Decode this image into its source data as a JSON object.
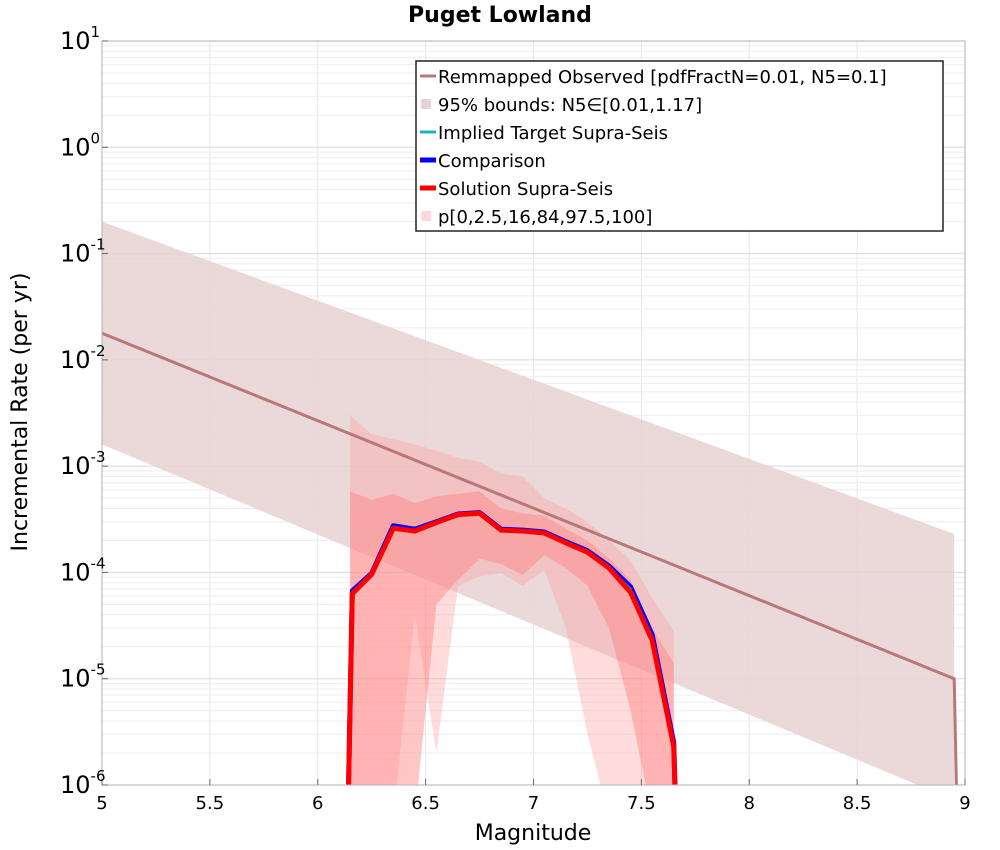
{
  "chart_data": {
    "type": "line",
    "title": "Puget Lowland",
    "xlabel": "Magnitude",
    "ylabel": "Incremental Rate (per yr)",
    "xlim": [
      5,
      9
    ],
    "ylim": [
      1e-06,
      10
    ],
    "yscale": "log",
    "grid": true,
    "legend_position": "top-right",
    "xticks": [
      "5",
      "5.5",
      "6",
      "6.5",
      "7",
      "7.5",
      "8",
      "8.5",
      "9"
    ],
    "yticks": [
      {
        "base": "10",
        "exp": "1"
      },
      {
        "base": "10",
        "exp": "0"
      },
      {
        "base": "10",
        "exp": "-1"
      },
      {
        "base": "10",
        "exp": "-2"
      },
      {
        "base": "10",
        "exp": "-3"
      },
      {
        "base": "10",
        "exp": "-4"
      },
      {
        "base": "10",
        "exp": "-5"
      },
      {
        "base": "10",
        "exp": "-6"
      }
    ],
    "legend": [
      {
        "label": "Remmapped Observed [pdfFractN=0.01, N5=0.1]",
        "color": "#b87878",
        "kind": "line"
      },
      {
        "label": "95% bounds: N5∈[0.01,1.17]",
        "color": "#e8d2d4",
        "kind": "patch"
      },
      {
        "label": "Implied Target Supra-Seis",
        "color": "#1fb0c8",
        "kind": "line"
      },
      {
        "label": "Comparison",
        "color": "#0000ff",
        "kind": "line"
      },
      {
        "label": "Solution Supra-Seis",
        "color": "#ff0000",
        "kind": "line"
      },
      {
        "label": "p[0,2.5,16,84,97.5,100]",
        "color": "#ffd6da",
        "kind": "patch"
      }
    ],
    "observed": {
      "x": [
        5.0,
        8.95,
        8.96
      ],
      "y": [
        0.0178,
        1e-05,
        1e-06
      ]
    },
    "observed_bounds": {
      "x": [
        5.0,
        8.95
      ],
      "upper": [
        0.2,
        0.00023
      ],
      "lower": [
        0.0016,
        7.2e-07
      ]
    },
    "solution": {
      "x": [
        6.14,
        6.16,
        6.25,
        6.35,
        6.45,
        6.55,
        6.65,
        6.75,
        6.85,
        6.95,
        7.05,
        7.15,
        7.25,
        7.35,
        7.45,
        7.55,
        7.65,
        7.66
      ],
      "y": [
        5e-07,
        6.3e-05,
        9.6e-05,
        0.00026,
        0.000245,
        0.000295,
        0.00035,
        0.00036,
        0.00025,
        0.000245,
        0.000235,
        0.00019,
        0.000155,
        0.00011,
        6.5e-05,
        2.3e-05,
        2.3e-06,
        5e-07
      ]
    },
    "comparison": {
      "x": [
        6.14,
        6.16,
        6.25,
        6.35,
        6.45,
        6.55,
        6.65,
        6.75,
        6.85,
        6.95,
        7.05,
        7.15,
        7.25,
        7.35,
        7.45,
        7.55,
        7.65,
        7.66
      ],
      "y": [
        5e-07,
        6.7e-05,
        9.8e-05,
        0.000275,
        0.000255,
        0.0003,
        0.000355,
        0.000365,
        0.000255,
        0.00025,
        0.00024,
        0.000195,
        0.00016,
        0.000115,
        7.3e-05,
        2.6e-05,
        2.5e-06,
        5e-07
      ]
    },
    "implied_target": {
      "x": [
        6.14,
        6.16,
        6.25,
        6.35,
        6.45,
        6.55,
        6.65,
        6.75,
        6.85,
        6.95,
        7.05,
        7.15,
        7.25,
        7.35,
        7.45,
        7.55,
        7.65,
        7.66
      ],
      "y": [
        5e-07,
        6.6e-05,
        9.7e-05,
        0.00027,
        0.00025,
        0.000298,
        0.000352,
        0.000362,
        0.000252,
        0.000248,
        0.000238,
        0.000193,
        0.000158,
        0.000112,
        7e-05,
        2.5e-05,
        2.4e-06,
        5e-07
      ]
    },
    "solution_percentiles": {
      "outer": {
        "x": [
          6.15,
          6.25,
          6.35,
          6.45,
          6.55,
          6.65,
          6.75,
          6.85,
          6.95,
          7.05,
          7.15,
          7.25,
          7.35,
          7.45,
          7.55,
          7.65
        ],
        "upper": [
          0.003,
          0.002,
          0.0018,
          0.0016,
          0.0014,
          0.0012,
          0.0011,
          0.00085,
          0.0008,
          0.0005,
          0.0004,
          0.0003,
          0.0002,
          0.00013,
          5.8e-05,
          2.8e-05
        ],
        "lower": [
          5e-07,
          5e-07,
          5e-07,
          4e-05,
          2e-06,
          7.5e-05,
          9.2e-05,
          9.8e-05,
          7.5e-05,
          0.000105,
          3e-05,
          3e-06,
          5e-07,
          5e-07,
          5e-07,
          5e-07
        ]
      },
      "inner": {
        "x": [
          6.15,
          6.25,
          6.35,
          6.45,
          6.55,
          6.65,
          6.75,
          6.85,
          6.95,
          7.05,
          7.15,
          7.25,
          7.35,
          7.45,
          7.55,
          7.65
        ],
        "upper": [
          0.00058,
          0.00048,
          0.00055,
          0.00045,
          0.00052,
          0.00055,
          0.00058,
          0.0004,
          0.00036,
          0.00034,
          0.00026,
          0.0002,
          0.000135,
          8.5e-05,
          3e-05,
          1.4e-05
        ],
        "lower": [
          5e-07,
          5e-07,
          5e-07,
          5e-07,
          5e-05,
          8.5e-05,
          0.000135,
          0.00012,
          9.5e-05,
          0.000145,
          0.00011,
          7.5e-05,
          3e-05,
          5e-06,
          5e-07,
          5e-07
        ]
      }
    }
  }
}
